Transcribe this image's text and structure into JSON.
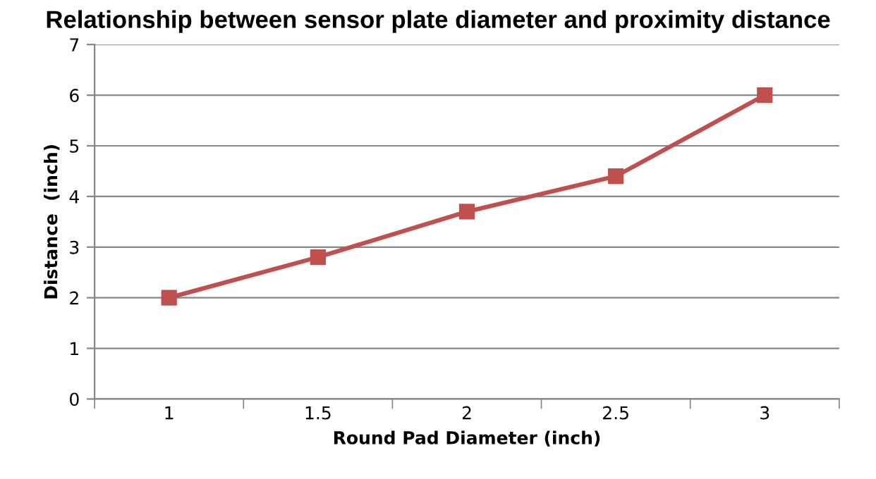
{
  "chart_data": {
    "type": "line",
    "title": "Relationship between sensor plate diameter and proximity distance",
    "xlabel": "Round Pad Diameter (inch)",
    "ylabel": "Distance  (inch)",
    "categories": [
      "1",
      "1.5",
      "2",
      "2.5",
      "3"
    ],
    "series": [
      {
        "color": "#c0504d",
        "values": [
          2,
          2.8,
          3.7,
          4.4,
          6
        ]
      }
    ],
    "ylim": [
      0,
      7
    ],
    "yticks": [
      0,
      1,
      2,
      3,
      4,
      5,
      6,
      7
    ],
    "grid": "y",
    "marker": "square",
    "line_style": "solid"
  }
}
